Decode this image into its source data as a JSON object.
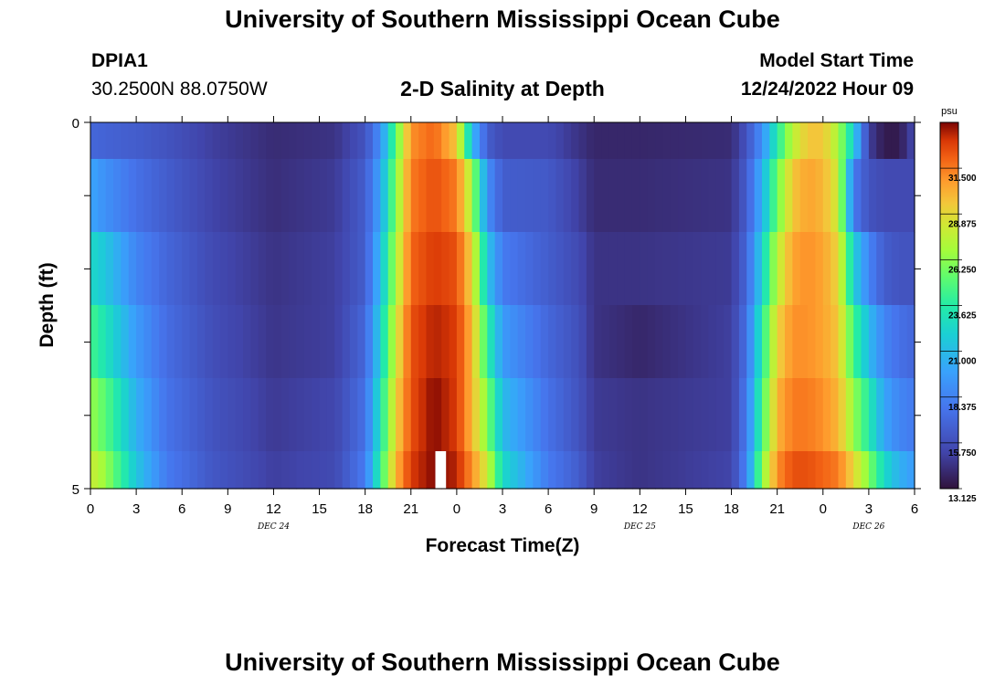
{
  "header": {
    "title": "University of Southern Mississippi Ocean Cube",
    "station_id": "DPIA1",
    "coords": "30.2500N  88.0750W",
    "plot_title": "2-D Salinity at Depth",
    "model_label": "Model Start Time",
    "model_time": "12/24/2022 Hour 09"
  },
  "footer": {
    "title": "University of Southern Mississippi Ocean Cube"
  },
  "chart_data": {
    "type": "heatmap",
    "title": "2-D Salinity at Depth",
    "xlabel": "Forecast Time(Z)",
    "ylabel": "Depth (ft)",
    "x_tick_labels": [
      "0",
      "3",
      "6",
      "9",
      "12",
      "15",
      "18",
      "21",
      "0",
      "3",
      "6",
      "9",
      "12",
      "15",
      "18",
      "21",
      "0",
      "3",
      "6"
    ],
    "x_range_hours": [
      0,
      54
    ],
    "date_labels": [
      {
        "label": "DEC 24",
        "hour": 12
      },
      {
        "label": "DEC 25",
        "hour": 36
      },
      {
        "label": "DEC 26",
        "hour": 51
      }
    ],
    "y_tick_labels": [
      "0",
      "5"
    ],
    "ylim": [
      0,
      5
    ],
    "depth_layers": [
      0.25,
      1.0,
      2.0,
      3.0,
      4.0,
      4.75
    ],
    "colorbar": {
      "unit": "psu",
      "min": 13.125,
      "max": 34.125,
      "tick_labels": [
        "31.500",
        "28.875",
        "26.250",
        "23.625",
        "21.000",
        "18.375",
        "15.750",
        "13.125"
      ]
    },
    "salinity_keyframes": [
      {
        "hour": 0,
        "values": [
          17.0,
          20.0,
          22.5,
          24.5,
          26.5,
          28.0
        ]
      },
      {
        "hour": 1,
        "values": [
          16.8,
          19.0,
          21.5,
          23.0,
          25.0,
          26.5
        ]
      },
      {
        "hour": 3,
        "values": [
          16.5,
          17.5,
          18.5,
          19.5,
          20.5,
          21.5
        ]
      },
      {
        "hour": 5,
        "values": [
          16.0,
          16.5,
          17.0,
          17.3,
          17.6,
          18.0
        ]
      },
      {
        "hour": 8,
        "values": [
          15.0,
          15.2,
          15.5,
          15.7,
          16.0,
          16.2
        ]
      },
      {
        "hour": 12,
        "values": [
          14.2,
          14.3,
          14.5,
          14.6,
          14.8,
          15.0
        ]
      },
      {
        "hour": 16,
        "values": [
          14.5,
          14.8,
          15.0,
          15.0,
          15.3,
          15.5
        ]
      },
      {
        "hour": 18,
        "values": [
          16.0,
          16.5,
          16.5,
          17.0,
          17.5,
          18.0
        ]
      },
      {
        "hour": 19,
        "values": [
          19.0,
          20.0,
          21.0,
          22.0,
          23.0,
          24.0
        ]
      },
      {
        "hour": 20,
        "values": [
          25.0,
          26.0,
          27.0,
          28.0,
          29.0,
          30.0
        ]
      },
      {
        "hour": 21,
        "values": [
          31.0,
          31.5,
          32.0,
          32.5,
          32.5,
          33.0
        ]
      },
      {
        "hour": 22.5,
        "values": [
          32.0,
          32.5,
          33.0,
          33.5,
          34.0,
          34.0
        ]
      },
      {
        "hour": 24,
        "values": [
          29.5,
          31.5,
          32.5,
          33.0,
          33.0,
          33.5
        ]
      },
      {
        "hour": 25,
        "values": [
          21.0,
          27.0,
          29.0,
          30.0,
          30.0,
          31.0
        ]
      },
      {
        "hour": 26,
        "values": [
          16.5,
          19.0,
          21.5,
          24.0,
          26.0,
          28.0
        ]
      },
      {
        "hour": 27,
        "values": [
          15.5,
          16.5,
          18.0,
          19.5,
          21.0,
          22.5
        ]
      },
      {
        "hour": 30,
        "values": [
          15.5,
          16.3,
          16.5,
          17.0,
          17.5,
          18.0
        ]
      },
      {
        "hour": 32,
        "values": [
          14.5,
          15.0,
          15.5,
          15.8,
          16.0,
          16.5
        ]
      },
      {
        "hour": 33,
        "values": [
          14.0,
          14.2,
          14.5,
          14.5,
          14.8,
          15.0
        ]
      },
      {
        "hour": 36,
        "values": [
          14.0,
          14.2,
          14.5,
          14.0,
          14.5,
          14.5
        ]
      },
      {
        "hour": 42,
        "values": [
          14.2,
          14.5,
          14.8,
          15.0,
          15.0,
          15.2
        ]
      },
      {
        "hour": 43,
        "values": [
          16.0,
          16.5,
          17.0,
          17.5,
          18.0,
          18.5
        ]
      },
      {
        "hour": 44,
        "values": [
          19.0,
          20.5,
          22.0,
          23.5,
          24.5,
          26.0
        ]
      },
      {
        "hour": 45,
        "values": [
          23.5,
          25.5,
          27.5,
          29.0,
          30.0,
          31.0
        ]
      },
      {
        "hour": 46,
        "values": [
          27.5,
          29.5,
          30.5,
          31.0,
          31.5,
          32.5
        ]
      },
      {
        "hour": 47,
        "values": [
          29.5,
          30.5,
          31.0,
          31.0,
          31.5,
          32.5
        ]
      },
      {
        "hour": 48,
        "values": [
          29.5,
          30.0,
          30.5,
          30.5,
          31.0,
          32.0
        ]
      },
      {
        "hour": 49,
        "values": [
          27.0,
          28.0,
          29.0,
          29.5,
          30.0,
          31.5
        ]
      },
      {
        "hour": 50,
        "values": [
          22.0,
          18.0,
          22.0,
          24.5,
          26.5,
          29.0
        ]
      },
      {
        "hour": 51,
        "values": [
          15.0,
          16.0,
          18.5,
          21.0,
          23.5,
          26.0
        ]
      },
      {
        "hour": 52,
        "values": [
          13.5,
          15.5,
          16.5,
          18.5,
          20.0,
          22.5
        ]
      },
      {
        "hour": 53,
        "values": [
          13.5,
          15.5,
          16.0,
          17.5,
          18.5,
          20.5
        ]
      },
      {
        "hour": 54,
        "values": [
          15.5,
          15.5,
          16.0,
          17.0,
          18.0,
          19.5
        ]
      }
    ],
    "missing_data": [
      {
        "hour_start": 22.6,
        "hour_end": 23.3,
        "layer": 5
      }
    ]
  }
}
